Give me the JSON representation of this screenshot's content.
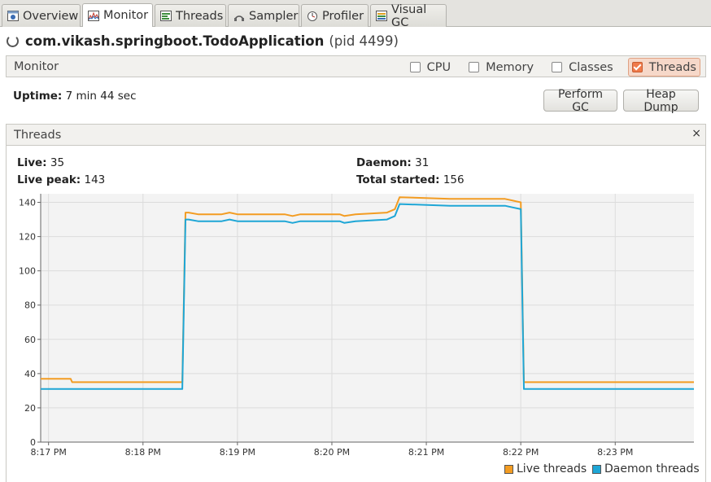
{
  "tabs": [
    {
      "label": "Overview",
      "icon": "info-icon",
      "active": false
    },
    {
      "label": "Monitor",
      "icon": "monitor-chart-icon",
      "active": true
    },
    {
      "label": "Threads",
      "icon": "threads-icon",
      "active": false
    },
    {
      "label": "Sampler",
      "icon": "sampler-icon",
      "active": false
    },
    {
      "label": "Profiler",
      "icon": "profiler-icon",
      "active": false
    },
    {
      "label": "Visual GC",
      "icon": "visual-gc-icon",
      "active": false
    }
  ],
  "app": {
    "name": "com.vikash.springboot.TodoApplication",
    "pid": "(pid 4499)"
  },
  "monitor": {
    "title": "Monitor",
    "checks": [
      {
        "label": "CPU",
        "checked": false
      },
      {
        "label": "Memory",
        "checked": false
      },
      {
        "label": "Classes",
        "checked": false
      },
      {
        "label": "Threads",
        "checked": true
      }
    ],
    "uptime_label": "Uptime:",
    "uptime_value": "7 min 44 sec",
    "perform_gc": "Perform GC",
    "heap_dump": "Heap Dump"
  },
  "threads_panel": {
    "title": "Threads",
    "close": "×",
    "live_label": "Live:",
    "live_value": "35",
    "live_peak_label": "Live peak:",
    "live_peak_value": "143",
    "daemon_label": "Daemon:",
    "daemon_value": "31",
    "total_started_label": "Total started:",
    "total_started_value": "156"
  },
  "colors": {
    "live": "#f39c22",
    "daemon": "#1ea6d6"
  },
  "chart_data": {
    "type": "line",
    "title": "",
    "xlabel": "",
    "ylabel": "",
    "ylim": [
      0,
      145
    ],
    "xlim": [
      "8:16:55 PM",
      "8:23:50 PM"
    ],
    "yticks": [
      0,
      20,
      40,
      60,
      80,
      100,
      120,
      140
    ],
    "xticks": [
      "8:17 PM",
      "8:18 PM",
      "8:19 PM",
      "8:20 PM",
      "8:21 PM",
      "8:22 PM",
      "8:23 PM"
    ],
    "grid": true,
    "legend": "bottom-right",
    "series": [
      {
        "name": "Live threads",
        "color": "#f39c22",
        "x": [
          "8:16:55 PM",
          "8:17:14 PM",
          "8:17:15 PM",
          "8:18:25 PM",
          "8:18:27 PM",
          "8:18:29 PM",
          "8:18:35 PM",
          "8:18:50 PM",
          "8:18:55 PM",
          "8:19:00 PM",
          "8:19:30 PM",
          "8:19:35 PM",
          "8:19:40 PM",
          "8:20:05 PM",
          "8:20:08 PM",
          "8:20:15 PM",
          "8:20:35 PM",
          "8:20:40 PM",
          "8:20:43 PM",
          "8:21:15 PM",
          "8:21:50 PM",
          "8:21:55 PM",
          "8:22:00 PM",
          "8:22:02 PM",
          "8:23:50 PM"
        ],
        "y": [
          37,
          37,
          35,
          35,
          134,
          134,
          133,
          133,
          134,
          133,
          133,
          132,
          133,
          133,
          132,
          133,
          134,
          136,
          143,
          142,
          142,
          141,
          140,
          35,
          35
        ]
      },
      {
        "name": "Daemon threads",
        "color": "#1ea6d6",
        "x": [
          "8:16:55 PM",
          "8:18:25 PM",
          "8:18:27 PM",
          "8:18:29 PM",
          "8:18:35 PM",
          "8:18:50 PM",
          "8:18:55 PM",
          "8:19:00 PM",
          "8:19:30 PM",
          "8:19:35 PM",
          "8:19:40 PM",
          "8:20:05 PM",
          "8:20:08 PM",
          "8:20:15 PM",
          "8:20:35 PM",
          "8:20:40 PM",
          "8:20:43 PM",
          "8:21:15 PM",
          "8:21:50 PM",
          "8:21:55 PM",
          "8:22:00 PM",
          "8:22:02 PM",
          "8:23:50 PM"
        ],
        "y": [
          31,
          31,
          130,
          130,
          129,
          129,
          130,
          129,
          129,
          128,
          129,
          129,
          128,
          129,
          130,
          132,
          139,
          138,
          138,
          137,
          136,
          31,
          31
        ]
      }
    ]
  }
}
